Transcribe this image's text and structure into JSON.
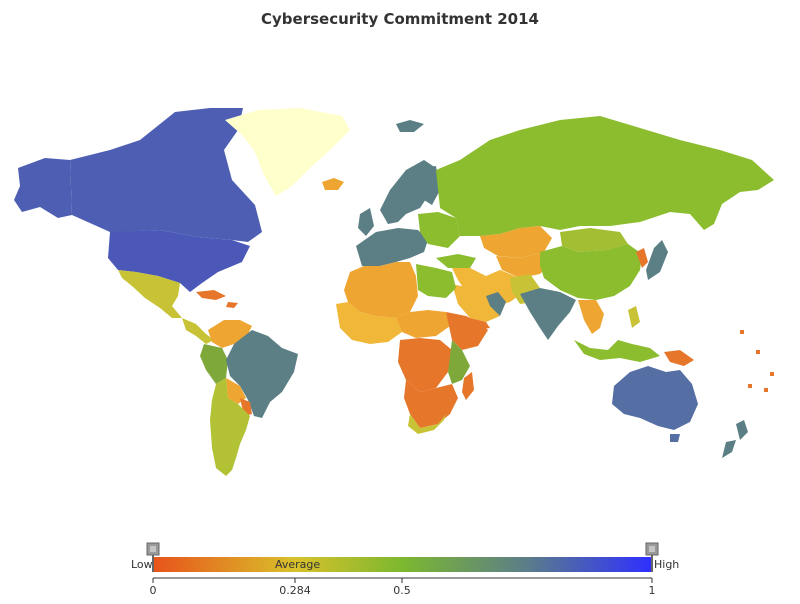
{
  "title": "Cybersecurity Commitment 2014",
  "colorbar": {
    "low_label": "Low",
    "average_label": "Average",
    "high_label": "High",
    "ticks": [
      "0",
      "0.284",
      "0.5",
      "1"
    ],
    "min": 0,
    "max": 1,
    "selected_range": [
      0,
      1
    ],
    "gradient_stops": [
      {
        "offset": 0,
        "color": "#e8531b"
      },
      {
        "offset": 0.284,
        "color": "#d9c12b"
      },
      {
        "offset": 0.5,
        "color": "#7cb82f"
      },
      {
        "offset": 0.75,
        "color": "#5b7d8a"
      },
      {
        "offset": 1,
        "color": "#2f2fff"
      }
    ]
  },
  "colors": {
    "high": "#4e5fb3",
    "mid_high": "#5b7f84",
    "mid": "#8bbd2e",
    "avg": "#c8c236",
    "low_mid": "#efa531",
    "low": "#e6762a",
    "unknown": "#ffffcc"
  }
}
